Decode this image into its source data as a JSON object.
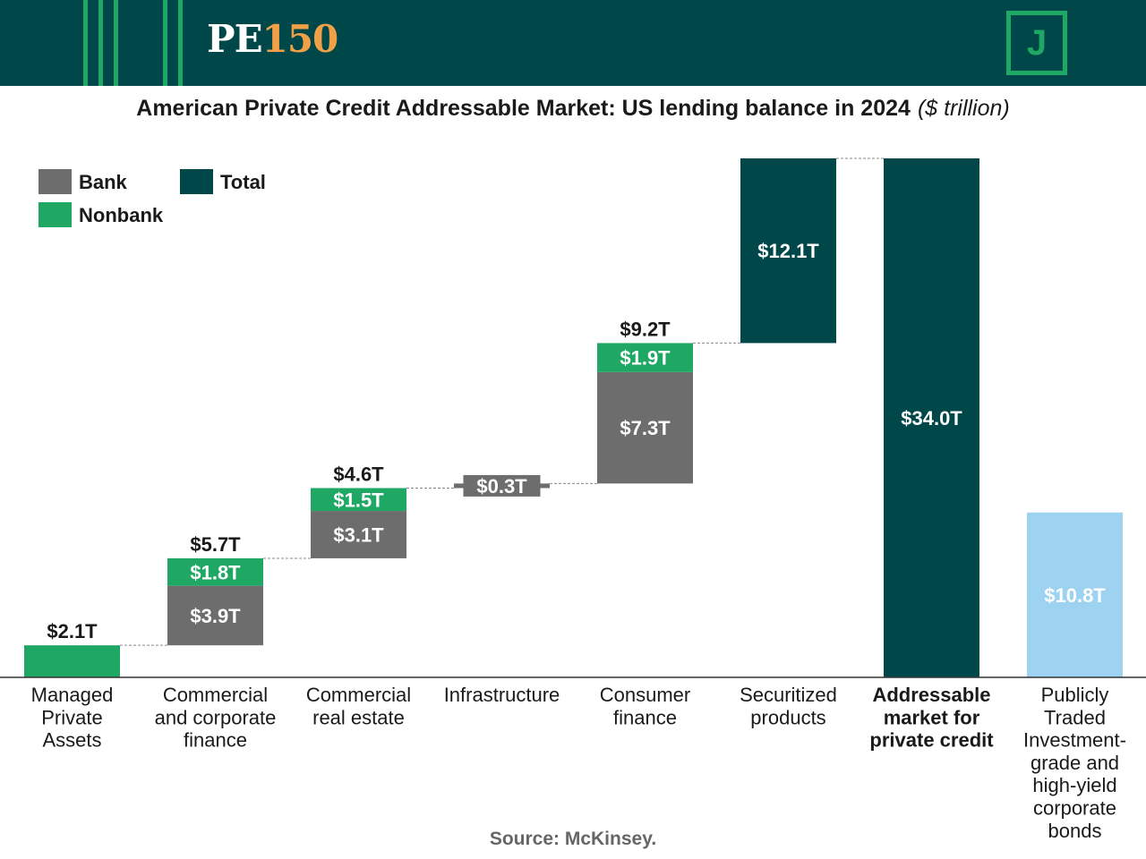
{
  "brand": {
    "logo_pe": "PE",
    "logo_num": "150",
    "badge_letter": "J"
  },
  "colors": {
    "header": "#00474a",
    "bank": "#6d6d6d",
    "nonbank": "#1fa863",
    "total": "#00474a",
    "public": "#9dd2f0",
    "accent_logo": "#f0a046"
  },
  "source": "Source: McKinsey.",
  "chart_data": {
    "type": "bar",
    "subtype": "waterfall",
    "title": "American Private Credit Addressable Market: US lending balance in 2024",
    "units": "($ trillion)",
    "legend": [
      {
        "key": "bank",
        "label": "Bank"
      },
      {
        "key": "total",
        "label": "Total"
      },
      {
        "key": "nonbank",
        "label": "Nonbank"
      }
    ],
    "categories": [
      {
        "label": [
          "Managed",
          "Private",
          "Assets"
        ],
        "bold": false,
        "segments": [
          {
            "type": "nonbank",
            "value": 2.1,
            "label": ""
          }
        ],
        "total_label": "$2.1T"
      },
      {
        "label": [
          "Commercial",
          "and corporate",
          "finance"
        ],
        "bold": false,
        "segments": [
          {
            "type": "bank",
            "value": 3.9,
            "label": "$3.9T"
          },
          {
            "type": "nonbank",
            "value": 1.8,
            "label": "$1.8T"
          }
        ],
        "total_label": "$5.7T"
      },
      {
        "label": [
          "Commercial",
          "real estate"
        ],
        "bold": false,
        "segments": [
          {
            "type": "bank",
            "value": 3.1,
            "label": "$3.1T"
          },
          {
            "type": "nonbank",
            "value": 1.5,
            "label": "$1.5T"
          }
        ],
        "total_label": "$4.6T"
      },
      {
        "label": [
          "Infrastructure"
        ],
        "bold": false,
        "segments": [
          {
            "type": "bank",
            "value": 0.3,
            "label": "$0.3T"
          }
        ],
        "total_label": ""
      },
      {
        "label": [
          "Consumer",
          "finance"
        ],
        "bold": false,
        "segments": [
          {
            "type": "bank",
            "value": 7.3,
            "label": "$7.3T"
          },
          {
            "type": "nonbank",
            "value": 1.9,
            "label": "$1.9T"
          }
        ],
        "total_label": "$9.2T"
      },
      {
        "label": [
          "Securitized",
          "products"
        ],
        "bold": false,
        "segments": [
          {
            "type": "total",
            "value": 12.1,
            "label": "$12.1T"
          }
        ],
        "total_label": ""
      },
      {
        "label": [
          "Addressable",
          "market for",
          "private credit"
        ],
        "bold": true,
        "segments": [
          {
            "type": "total",
            "value": 34.0,
            "label": "$34.0T"
          }
        ],
        "total_label": "",
        "reset": true
      },
      {
        "label": [
          "Publicly",
          "Traded",
          "Investment-",
          "grade and",
          "high-yield",
          "corporate",
          "bonds"
        ],
        "bold": false,
        "segments": [
          {
            "type": "public",
            "value": 10.8,
            "label": "$10.8T"
          }
        ],
        "total_label": "",
        "reset": true,
        "no_connector": true
      }
    ],
    "ylim": [
      0,
      34.0
    ]
  }
}
